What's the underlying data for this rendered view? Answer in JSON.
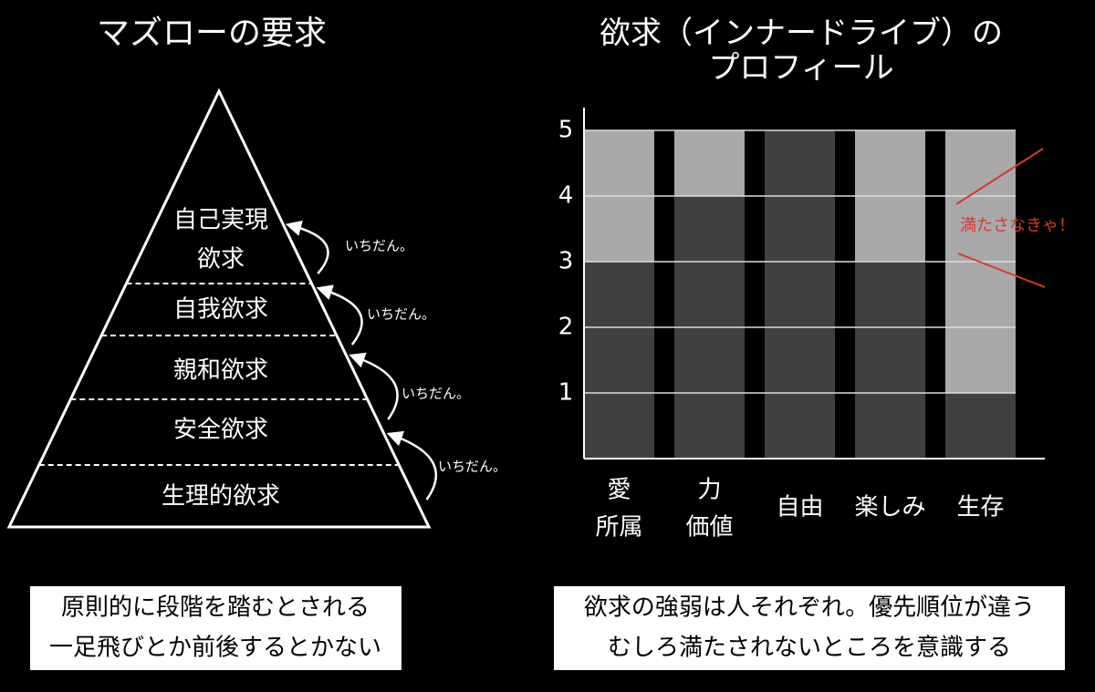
{
  "pyramid": {
    "title": "マズローの要求",
    "levels": [
      [
        "自己実現",
        "欲求"
      ],
      [
        "自我欲求"
      ],
      [
        "親和欲求"
      ],
      [
        "安全欲求"
      ],
      [
        "生理的欲求"
      ]
    ],
    "steps": [
      "いちだん。",
      "いちだん。",
      "いちだん。",
      "いちだん。"
    ],
    "caption": [
      "原則的に段階を踏むとされる",
      "一足飛びとか前後するとかない"
    ]
  },
  "chart_data": {
    "type": "bar",
    "title": [
      "欲求（インナードライブ）の",
      "プロフィール"
    ],
    "categories": [
      [
        "愛",
        "所属"
      ],
      [
        "力",
        "価値"
      ],
      [
        "自由"
      ],
      [
        "楽しみ"
      ],
      [
        "生存"
      ]
    ],
    "values": [
      3,
      4,
      5,
      3,
      1
    ],
    "color": "#404040",
    "background_color": "#a9a9a9",
    "ylim": [
      0,
      5
    ],
    "yticks": [
      1,
      2,
      3,
      4,
      5
    ],
    "grid": true,
    "annotation": "満たさなきゃ！",
    "annotation_color": "#d63a2a"
  },
  "chart_caption": [
    "欲求の強弱は人それぞれ。優先順位が違う",
    "むしろ満たされないところを意識する"
  ]
}
